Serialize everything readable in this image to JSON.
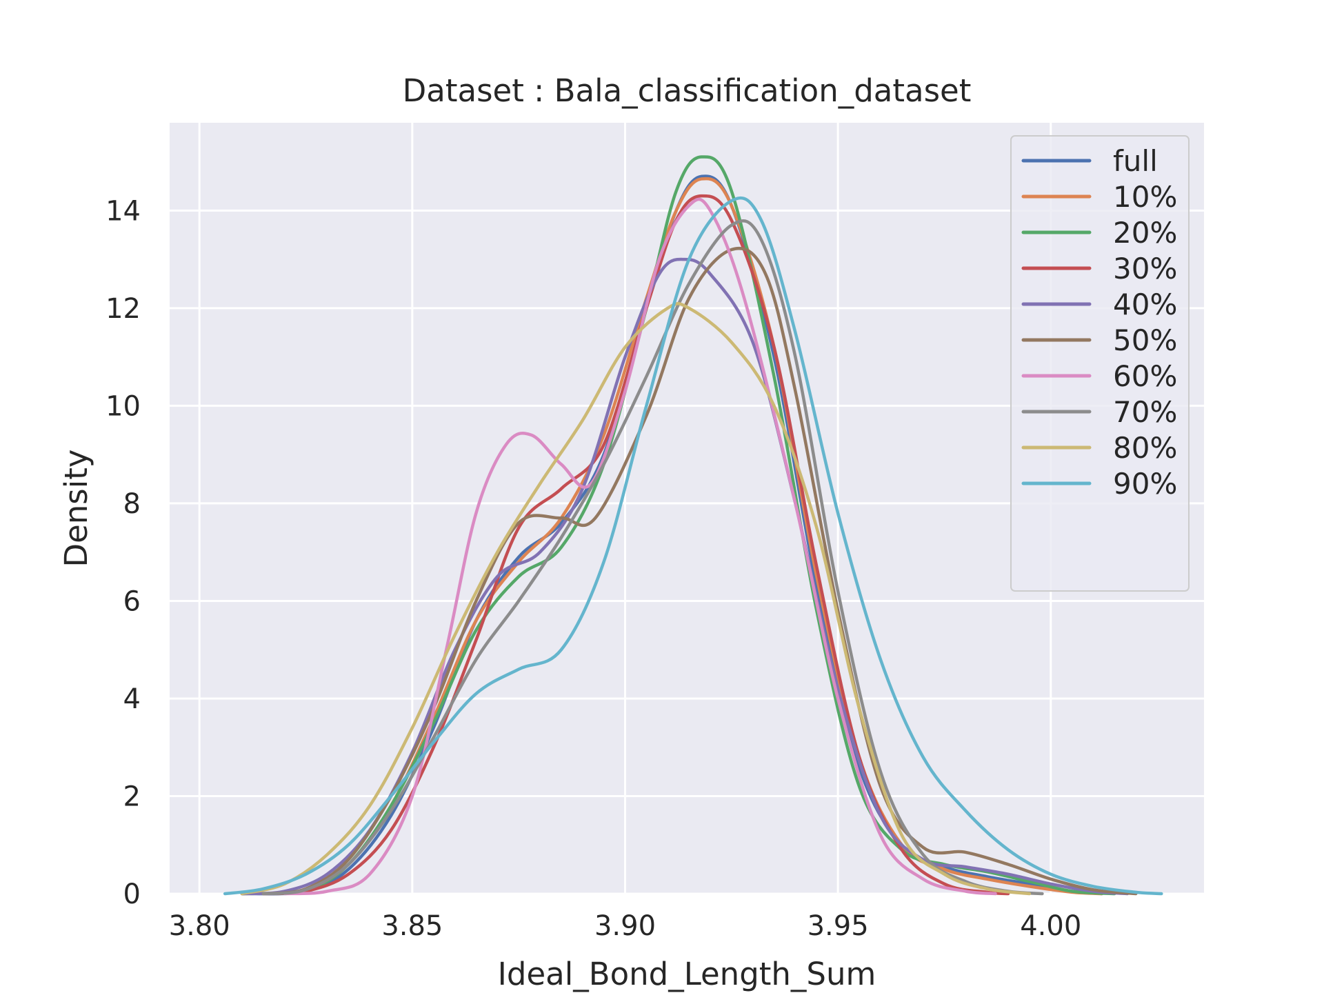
{
  "chart_data": {
    "type": "line",
    "title": "Dataset : Bala_classification_dataset",
    "xlabel": "Ideal_Bond_Length_Sum",
    "ylabel": "Density",
    "xlim": [
      3.793,
      4.036
    ],
    "ylim": [
      0,
      15.8
    ],
    "x_ticks": [
      3.8,
      3.85,
      3.9,
      3.95,
      4.0
    ],
    "x_tick_labels": [
      "3.80",
      "3.85",
      "3.90",
      "3.95",
      "4.00"
    ],
    "y_ticks": [
      0,
      2,
      4,
      6,
      8,
      10,
      12,
      14
    ],
    "y_tick_labels": [
      "0",
      "2",
      "4",
      "6",
      "8",
      "10",
      "12",
      "14"
    ],
    "grid": true,
    "legend_position": "top-right",
    "series": [
      {
        "name": "full",
        "color": "#4c72b0",
        "points": [
          [
            3.81,
            0
          ],
          [
            3.825,
            0.05
          ],
          [
            3.835,
            0.5
          ],
          [
            3.845,
            1.6
          ],
          [
            3.855,
            3.4
          ],
          [
            3.865,
            5.6
          ],
          [
            3.875,
            6.9
          ],
          [
            3.885,
            7.6
          ],
          [
            3.895,
            9.0
          ],
          [
            3.905,
            12.0
          ],
          [
            3.912,
            14.0
          ],
          [
            3.918,
            14.7
          ],
          [
            3.925,
            14.1
          ],
          [
            3.935,
            11.0
          ],
          [
            3.945,
            6.3
          ],
          [
            3.955,
            2.6
          ],
          [
            3.965,
            1.0
          ],
          [
            3.975,
            0.55
          ],
          [
            3.985,
            0.35
          ],
          [
            3.995,
            0.2
          ],
          [
            4.005,
            0.05
          ],
          [
            4.012,
            0
          ]
        ]
      },
      {
        "name": "10%",
        "color": "#dd8452",
        "points": [
          [
            3.81,
            0
          ],
          [
            3.825,
            0.08
          ],
          [
            3.835,
            0.6
          ],
          [
            3.845,
            1.8
          ],
          [
            3.855,
            3.6
          ],
          [
            3.865,
            5.6
          ],
          [
            3.875,
            6.8
          ],
          [
            3.885,
            7.7
          ],
          [
            3.895,
            9.4
          ],
          [
            3.905,
            12.2
          ],
          [
            3.912,
            14.0
          ],
          [
            3.918,
            14.65
          ],
          [
            3.925,
            14.1
          ],
          [
            3.935,
            11.2
          ],
          [
            3.945,
            6.5
          ],
          [
            3.955,
            2.8
          ],
          [
            3.965,
            1.0
          ],
          [
            3.975,
            0.5
          ],
          [
            3.985,
            0.3
          ],
          [
            3.995,
            0.15
          ],
          [
            4.005,
            0.03
          ],
          [
            4.012,
            0
          ]
        ]
      },
      {
        "name": "20%",
        "color": "#55a868",
        "points": [
          [
            3.81,
            0
          ],
          [
            3.825,
            0.08
          ],
          [
            3.835,
            0.6
          ],
          [
            3.845,
            1.8
          ],
          [
            3.855,
            3.5
          ],
          [
            3.865,
            5.4
          ],
          [
            3.875,
            6.5
          ],
          [
            3.885,
            7.1
          ],
          [
            3.895,
            8.8
          ],
          [
            3.905,
            12.0
          ],
          [
            3.912,
            14.4
          ],
          [
            3.918,
            15.1
          ],
          [
            3.925,
            14.4
          ],
          [
            3.935,
            10.6
          ],
          [
            3.945,
            5.8
          ],
          [
            3.955,
            2.2
          ],
          [
            3.965,
            0.9
          ],
          [
            3.975,
            0.6
          ],
          [
            3.985,
            0.45
          ],
          [
            3.995,
            0.25
          ],
          [
            4.005,
            0.05
          ],
          [
            4.015,
            0
          ]
        ]
      },
      {
        "name": "30%",
        "color": "#c44e52",
        "points": [
          [
            3.815,
            0
          ],
          [
            3.825,
            0.05
          ],
          [
            3.835,
            0.4
          ],
          [
            3.845,
            1.3
          ],
          [
            3.855,
            3.0
          ],
          [
            3.865,
            5.2
          ],
          [
            3.875,
            7.5
          ],
          [
            3.885,
            8.3
          ],
          [
            3.895,
            9.2
          ],
          [
            3.905,
            12.0
          ],
          [
            3.912,
            13.8
          ],
          [
            3.918,
            14.3
          ],
          [
            3.925,
            13.8
          ],
          [
            3.935,
            11.2
          ],
          [
            3.945,
            6.7
          ],
          [
            3.955,
            2.8
          ],
          [
            3.965,
            0.9
          ],
          [
            3.975,
            0.2
          ],
          [
            3.985,
            0.03
          ],
          [
            3.99,
            0
          ]
        ]
      },
      {
        "name": "40%",
        "color": "#8172b3",
        "points": [
          [
            3.81,
            0
          ],
          [
            3.82,
            0.05
          ],
          [
            3.83,
            0.4
          ],
          [
            3.84,
            1.3
          ],
          [
            3.85,
            2.9
          ],
          [
            3.86,
            5.0
          ],
          [
            3.87,
            6.5
          ],
          [
            3.88,
            7.0
          ],
          [
            3.89,
            8.3
          ],
          [
            3.9,
            11.0
          ],
          [
            3.908,
            12.7
          ],
          [
            3.914,
            13.0
          ],
          [
            3.92,
            12.7
          ],
          [
            3.93,
            11.3
          ],
          [
            3.94,
            8.0
          ],
          [
            3.95,
            4.2
          ],
          [
            3.96,
            1.6
          ],
          [
            3.97,
            0.7
          ],
          [
            3.98,
            0.55
          ],
          [
            3.99,
            0.4
          ],
          [
            4.0,
            0.2
          ],
          [
            4.01,
            0.05
          ],
          [
            4.018,
            0
          ]
        ]
      },
      {
        "name": "50%",
        "color": "#937860",
        "points": [
          [
            3.815,
            0
          ],
          [
            3.825,
            0.1
          ],
          [
            3.835,
            0.7
          ],
          [
            3.845,
            2.0
          ],
          [
            3.855,
            3.8
          ],
          [
            3.865,
            6.0
          ],
          [
            3.875,
            7.6
          ],
          [
            3.885,
            7.7
          ],
          [
            3.893,
            7.7
          ],
          [
            3.905,
            9.8
          ],
          [
            3.915,
            12.2
          ],
          [
            3.925,
            13.2
          ],
          [
            3.933,
            12.7
          ],
          [
            3.94,
            10.3
          ],
          [
            3.95,
            5.8
          ],
          [
            3.96,
            2.2
          ],
          [
            3.97,
            0.95
          ],
          [
            3.98,
            0.85
          ],
          [
            3.99,
            0.6
          ],
          [
            4.0,
            0.3
          ],
          [
            4.01,
            0.08
          ],
          [
            4.02,
            0
          ]
        ]
      },
      {
        "name": "60%",
        "color": "#da8bc3",
        "points": [
          [
            3.82,
            0
          ],
          [
            3.83,
            0.05
          ],
          [
            3.84,
            0.4
          ],
          [
            3.85,
            2.0
          ],
          [
            3.858,
            5.0
          ],
          [
            3.865,
            7.8
          ],
          [
            3.872,
            9.2
          ],
          [
            3.878,
            9.4
          ],
          [
            3.885,
            8.8
          ],
          [
            3.892,
            8.4
          ],
          [
            3.9,
            10.3
          ],
          [
            3.908,
            13.0
          ],
          [
            3.915,
            14.1
          ],
          [
            3.92,
            14.0
          ],
          [
            3.928,
            12.2
          ],
          [
            3.94,
            8.0
          ],
          [
            3.95,
            4.0
          ],
          [
            3.96,
            1.2
          ],
          [
            3.97,
            0.3
          ],
          [
            3.98,
            0.05
          ],
          [
            3.987,
            0
          ]
        ]
      },
      {
        "name": "70%",
        "color": "#8c8c8c",
        "points": [
          [
            3.815,
            0
          ],
          [
            3.825,
            0.08
          ],
          [
            3.835,
            0.6
          ],
          [
            3.845,
            1.7
          ],
          [
            3.855,
            3.2
          ],
          [
            3.865,
            4.8
          ],
          [
            3.875,
            6.0
          ],
          [
            3.885,
            7.3
          ],
          [
            3.895,
            8.8
          ],
          [
            3.905,
            10.6
          ],
          [
            3.915,
            12.5
          ],
          [
            3.925,
            13.7
          ],
          [
            3.932,
            13.4
          ],
          [
            3.94,
            11.0
          ],
          [
            3.95,
            6.2
          ],
          [
            3.96,
            2.5
          ],
          [
            3.97,
            0.8
          ],
          [
            3.98,
            0.25
          ],
          [
            3.99,
            0.05
          ],
          [
            3.998,
            0
          ]
        ]
      },
      {
        "name": "80%",
        "color": "#ccb974",
        "points": [
          [
            3.81,
            0
          ],
          [
            3.82,
            0.2
          ],
          [
            3.83,
            0.8
          ],
          [
            3.84,
            1.8
          ],
          [
            3.85,
            3.4
          ],
          [
            3.86,
            5.3
          ],
          [
            3.87,
            7.0
          ],
          [
            3.88,
            8.4
          ],
          [
            3.89,
            9.7
          ],
          [
            3.9,
            11.2
          ],
          [
            3.91,
            12.0
          ],
          [
            3.915,
            12.0
          ],
          [
            3.925,
            11.3
          ],
          [
            3.935,
            10.0
          ],
          [
            3.945,
            7.5
          ],
          [
            3.955,
            3.8
          ],
          [
            3.965,
            1.2
          ],
          [
            3.975,
            0.4
          ],
          [
            3.985,
            0.1
          ],
          [
            3.995,
            0
          ]
        ]
      },
      {
        "name": "90%",
        "color": "#64b5cd",
        "points": [
          [
            3.806,
            0
          ],
          [
            3.815,
            0.1
          ],
          [
            3.825,
            0.4
          ],
          [
            3.835,
            1.0
          ],
          [
            3.845,
            2.0
          ],
          [
            3.855,
            3.1
          ],
          [
            3.865,
            4.1
          ],
          [
            3.875,
            4.6
          ],
          [
            3.885,
            5.0
          ],
          [
            3.895,
            6.8
          ],
          [
            3.905,
            10.0
          ],
          [
            3.915,
            13.0
          ],
          [
            3.925,
            14.2
          ],
          [
            3.932,
            13.8
          ],
          [
            3.94,
            11.5
          ],
          [
            3.95,
            7.8
          ],
          [
            3.96,
            4.8
          ],
          [
            3.97,
            2.8
          ],
          [
            3.98,
            1.7
          ],
          [
            3.99,
            0.9
          ],
          [
            4.0,
            0.4
          ],
          [
            4.01,
            0.15
          ],
          [
            4.02,
            0.03
          ],
          [
            4.026,
            0
          ]
        ]
      }
    ]
  }
}
